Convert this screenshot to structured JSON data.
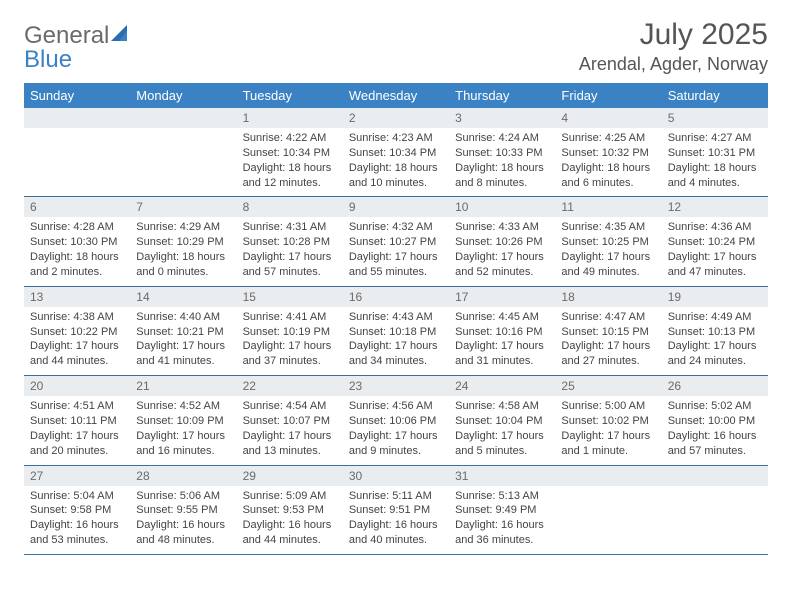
{
  "brand": {
    "word1": "General",
    "word2": "Blue"
  },
  "title": "July 2025",
  "location": "Arendal, Agder, Norway",
  "colors": {
    "header_bg": "#3b82c4",
    "header_text": "#ffffff",
    "daynum_bg": "#e9edf0",
    "daynum_text": "#6b6b6b",
    "rule": "#3b6fa0",
    "body_text": "#444444",
    "page_bg": "#ffffff"
  },
  "typography": {
    "title_fontsize": 30,
    "location_fontsize": 18,
    "dayhead_fontsize": 13,
    "cell_fontsize": 11
  },
  "day_headers": [
    "Sunday",
    "Monday",
    "Tuesday",
    "Wednesday",
    "Thursday",
    "Friday",
    "Saturday"
  ],
  "weeks": [
    [
      {
        "blank": true
      },
      {
        "blank": true
      },
      {
        "n": "1",
        "sunrise": "Sunrise: 4:22 AM",
        "sunset": "Sunset: 10:34 PM",
        "daylight": "Daylight: 18 hours and 12 minutes."
      },
      {
        "n": "2",
        "sunrise": "Sunrise: 4:23 AM",
        "sunset": "Sunset: 10:34 PM",
        "daylight": "Daylight: 18 hours and 10 minutes."
      },
      {
        "n": "3",
        "sunrise": "Sunrise: 4:24 AM",
        "sunset": "Sunset: 10:33 PM",
        "daylight": "Daylight: 18 hours and 8 minutes."
      },
      {
        "n": "4",
        "sunrise": "Sunrise: 4:25 AM",
        "sunset": "Sunset: 10:32 PM",
        "daylight": "Daylight: 18 hours and 6 minutes."
      },
      {
        "n": "5",
        "sunrise": "Sunrise: 4:27 AM",
        "sunset": "Sunset: 10:31 PM",
        "daylight": "Daylight: 18 hours and 4 minutes."
      }
    ],
    [
      {
        "n": "6",
        "sunrise": "Sunrise: 4:28 AM",
        "sunset": "Sunset: 10:30 PM",
        "daylight": "Daylight: 18 hours and 2 minutes."
      },
      {
        "n": "7",
        "sunrise": "Sunrise: 4:29 AM",
        "sunset": "Sunset: 10:29 PM",
        "daylight": "Daylight: 18 hours and 0 minutes."
      },
      {
        "n": "8",
        "sunrise": "Sunrise: 4:31 AM",
        "sunset": "Sunset: 10:28 PM",
        "daylight": "Daylight: 17 hours and 57 minutes."
      },
      {
        "n": "9",
        "sunrise": "Sunrise: 4:32 AM",
        "sunset": "Sunset: 10:27 PM",
        "daylight": "Daylight: 17 hours and 55 minutes."
      },
      {
        "n": "10",
        "sunrise": "Sunrise: 4:33 AM",
        "sunset": "Sunset: 10:26 PM",
        "daylight": "Daylight: 17 hours and 52 minutes."
      },
      {
        "n": "11",
        "sunrise": "Sunrise: 4:35 AM",
        "sunset": "Sunset: 10:25 PM",
        "daylight": "Daylight: 17 hours and 49 minutes."
      },
      {
        "n": "12",
        "sunrise": "Sunrise: 4:36 AM",
        "sunset": "Sunset: 10:24 PM",
        "daylight": "Daylight: 17 hours and 47 minutes."
      }
    ],
    [
      {
        "n": "13",
        "sunrise": "Sunrise: 4:38 AM",
        "sunset": "Sunset: 10:22 PM",
        "daylight": "Daylight: 17 hours and 44 minutes."
      },
      {
        "n": "14",
        "sunrise": "Sunrise: 4:40 AM",
        "sunset": "Sunset: 10:21 PM",
        "daylight": "Daylight: 17 hours and 41 minutes."
      },
      {
        "n": "15",
        "sunrise": "Sunrise: 4:41 AM",
        "sunset": "Sunset: 10:19 PM",
        "daylight": "Daylight: 17 hours and 37 minutes."
      },
      {
        "n": "16",
        "sunrise": "Sunrise: 4:43 AM",
        "sunset": "Sunset: 10:18 PM",
        "daylight": "Daylight: 17 hours and 34 minutes."
      },
      {
        "n": "17",
        "sunrise": "Sunrise: 4:45 AM",
        "sunset": "Sunset: 10:16 PM",
        "daylight": "Daylight: 17 hours and 31 minutes."
      },
      {
        "n": "18",
        "sunrise": "Sunrise: 4:47 AM",
        "sunset": "Sunset: 10:15 PM",
        "daylight": "Daylight: 17 hours and 27 minutes."
      },
      {
        "n": "19",
        "sunrise": "Sunrise: 4:49 AM",
        "sunset": "Sunset: 10:13 PM",
        "daylight": "Daylight: 17 hours and 24 minutes."
      }
    ],
    [
      {
        "n": "20",
        "sunrise": "Sunrise: 4:51 AM",
        "sunset": "Sunset: 10:11 PM",
        "daylight": "Daylight: 17 hours and 20 minutes."
      },
      {
        "n": "21",
        "sunrise": "Sunrise: 4:52 AM",
        "sunset": "Sunset: 10:09 PM",
        "daylight": "Daylight: 17 hours and 16 minutes."
      },
      {
        "n": "22",
        "sunrise": "Sunrise: 4:54 AM",
        "sunset": "Sunset: 10:07 PM",
        "daylight": "Daylight: 17 hours and 13 minutes."
      },
      {
        "n": "23",
        "sunrise": "Sunrise: 4:56 AM",
        "sunset": "Sunset: 10:06 PM",
        "daylight": "Daylight: 17 hours and 9 minutes."
      },
      {
        "n": "24",
        "sunrise": "Sunrise: 4:58 AM",
        "sunset": "Sunset: 10:04 PM",
        "daylight": "Daylight: 17 hours and 5 minutes."
      },
      {
        "n": "25",
        "sunrise": "Sunrise: 5:00 AM",
        "sunset": "Sunset: 10:02 PM",
        "daylight": "Daylight: 17 hours and 1 minute."
      },
      {
        "n": "26",
        "sunrise": "Sunrise: 5:02 AM",
        "sunset": "Sunset: 10:00 PM",
        "daylight": "Daylight: 16 hours and 57 minutes."
      }
    ],
    [
      {
        "n": "27",
        "sunrise": "Sunrise: 5:04 AM",
        "sunset": "Sunset: 9:58 PM",
        "daylight": "Daylight: 16 hours and 53 minutes."
      },
      {
        "n": "28",
        "sunrise": "Sunrise: 5:06 AM",
        "sunset": "Sunset: 9:55 PM",
        "daylight": "Daylight: 16 hours and 48 minutes."
      },
      {
        "n": "29",
        "sunrise": "Sunrise: 5:09 AM",
        "sunset": "Sunset: 9:53 PM",
        "daylight": "Daylight: 16 hours and 44 minutes."
      },
      {
        "n": "30",
        "sunrise": "Sunrise: 5:11 AM",
        "sunset": "Sunset: 9:51 PM",
        "daylight": "Daylight: 16 hours and 40 minutes."
      },
      {
        "n": "31",
        "sunrise": "Sunrise: 5:13 AM",
        "sunset": "Sunset: 9:49 PM",
        "daylight": "Daylight: 16 hours and 36 minutes."
      },
      {
        "blank": true
      },
      {
        "blank": true
      }
    ]
  ]
}
